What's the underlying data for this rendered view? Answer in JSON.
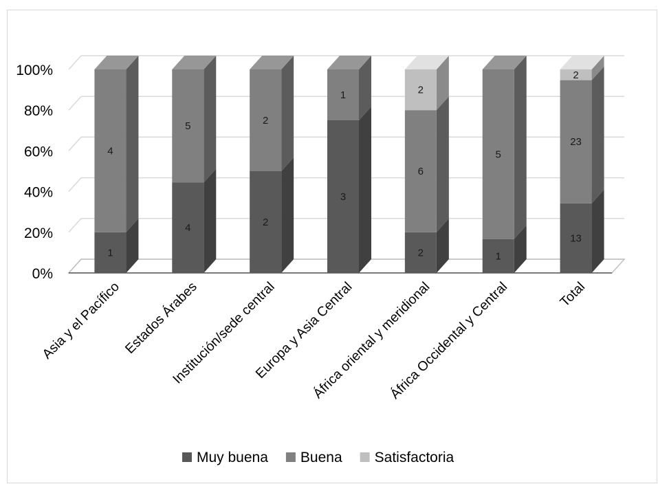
{
  "chart_data": {
    "type": "bar",
    "stacked": "percent",
    "three_d": true,
    "categories": [
      "Asia y el Pacífico",
      "Estados Árabes",
      "Institución/sede central",
      "Europa y Asia Central",
      "África oriental y meridional",
      "África Occidental y Central",
      "Total"
    ],
    "series": [
      {
        "name": "Muy buena",
        "color": "#595959",
        "values": [
          1,
          4,
          2,
          3,
          2,
          1,
          13
        ]
      },
      {
        "name": "Buena",
        "color": "#808080",
        "values": [
          4,
          5,
          2,
          1,
          6,
          5,
          23
        ]
      },
      {
        "name": "Satisfactoria",
        "color": "#bfbfbf",
        "values": [
          0,
          0,
          0,
          0,
          2,
          0,
          2
        ]
      }
    ],
    "ylim": [
      0,
      100
    ],
    "yticks": [
      "0%",
      "20%",
      "40%",
      "60%",
      "80%",
      "100%"
    ],
    "grid": true,
    "legend": "bottom"
  }
}
